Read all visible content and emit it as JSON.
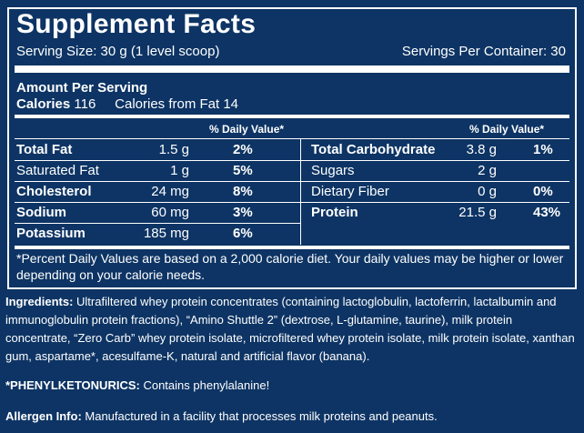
{
  "panel": {
    "title": "Supplement Facts",
    "serving_size": "Serving Size: 30 g (1 level scoop)",
    "servings_per_container": "Servings Per Container: 30",
    "amount_per_serving": "Amount Per Serving",
    "calories_label": "Calories",
    "calories_value": "116",
    "calories_from_fat": "Calories from Fat 14",
    "daily_value_header_left": "% Daily Value*",
    "daily_value_header_right": "% Daily Value*",
    "left_rows": [
      {
        "name": "Total Fat",
        "amount": "1.5 g",
        "dv": "2%"
      },
      {
        "name": "Saturated Fat",
        "amount": "1 g",
        "dv": "5%"
      },
      {
        "name": "Cholesterol",
        "amount": "24 mg",
        "dv": "8%"
      },
      {
        "name": "Sodium",
        "amount": "60 mg",
        "dv": "3%"
      },
      {
        "name": "Potassium",
        "amount": "185 mg",
        "dv": "6%"
      }
    ],
    "right_rows": [
      {
        "name": "Total Carbohydrate",
        "amount": "3.8 g",
        "dv": "1%"
      },
      {
        "name": "Sugars",
        "amount": "2 g",
        "dv": ""
      },
      {
        "name": "Dietary Fiber",
        "amount": "0 g",
        "dv": "0%"
      },
      {
        "name": "Protein",
        "amount": "21.5 g",
        "dv": "43%"
      }
    ],
    "footnote": "*Percent Daily Values are based on a 2,000 calorie diet. Your daily values may be higher or lower depending on your calorie needs."
  },
  "ingredients": {
    "label": "Ingredients:",
    "text": " Ultrafiltered whey protein concentrates (containing lactoglobulin, lactoferrin, lactalbumin and immunoglobulin protein fractions), “Amino Shuttle 2” (dextrose, L-glutamine, taurine), milk protein concentrate, “Zero Carb” whey protein isolate, microfiltered whey protein isolate, milk protein isolate, xanthan gum, aspartame*, acesulfame-K, natural and artificial flavor (banana)."
  },
  "phenyl": {
    "label": "*PHENYLKETONURICS:",
    "text": " Contains phenylalanine!"
  },
  "allergen": {
    "label": "Allergen Info:",
    "text": " Manufactured in a facility that processes milk proteins and peanuts."
  },
  "colors": {
    "background": "#0d3464",
    "text": "#ffffff"
  }
}
